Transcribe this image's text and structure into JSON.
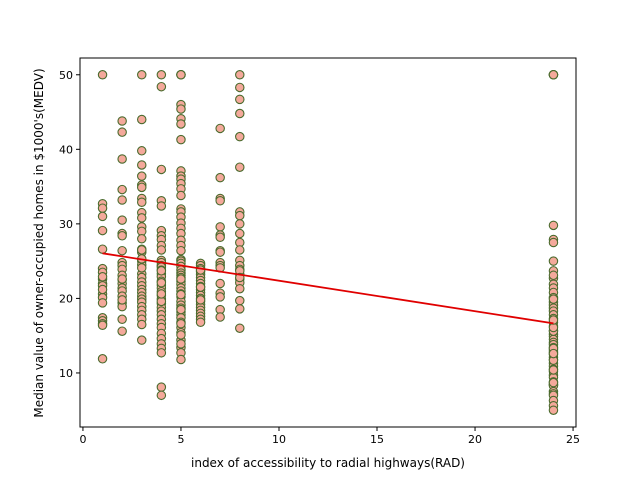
{
  "chart_data": {
    "type": "scatter",
    "title": "",
    "xlabel": "index of accessibility to radial highways(RAD)",
    "ylabel": "Median value of owner-occupied homes in $1000's(MEDV)",
    "xlim": [
      -0.15,
      25.15
    ],
    "ylim": [
      2.75,
      52.25
    ],
    "x_ticks": [
      0,
      5,
      10,
      15,
      20,
      25
    ],
    "y_ticks": [
      10,
      20,
      30,
      40,
      50
    ],
    "grid": false,
    "legend": "none",
    "marker_fill": "#f4a99b",
    "marker_edge": "#4b6b2e",
    "line_color": "#e00000",
    "series": [
      {
        "x": [
          1,
          1,
          1,
          1,
          1,
          1,
          1,
          1,
          1,
          1,
          1,
          1,
          1,
          1,
          1,
          1,
          1,
          1,
          1,
          1,
          1,
          2,
          2,
          2,
          2,
          2,
          2,
          2,
          2,
          2,
          2,
          2,
          2,
          2,
          2,
          2,
          2,
          2,
          2,
          2,
          2,
          2,
          2,
          2,
          2,
          3,
          3,
          3,
          3,
          3,
          3,
          3,
          3,
          3,
          3,
          3,
          3,
          3,
          3,
          3,
          3,
          3,
          3,
          3,
          3,
          3,
          3,
          3,
          3,
          3,
          3,
          3,
          3,
          3,
          3,
          3,
          3,
          3,
          3,
          3,
          3,
          4,
          4,
          4,
          4,
          4,
          4,
          4,
          4,
          4,
          4,
          4,
          4,
          4,
          4,
          4,
          4,
          4,
          4,
          4,
          4,
          4,
          4,
          4,
          4,
          4,
          4,
          4,
          4,
          4,
          4,
          4,
          4,
          4,
          4,
          4,
          4,
          4,
          4,
          4,
          4,
          4,
          5,
          5,
          5,
          5,
          5,
          5,
          5,
          5,
          5,
          5,
          5,
          5,
          5,
          5,
          5,
          5,
          5,
          5,
          5,
          5,
          5,
          5,
          5,
          5,
          5,
          5,
          5,
          5,
          5,
          5,
          5,
          5,
          5,
          5,
          5,
          5,
          5,
          5,
          5,
          5,
          5,
          5,
          5,
          5,
          5,
          5,
          5,
          5,
          5,
          5,
          5,
          5,
          5,
          5,
          5,
          5,
          6,
          6,
          6,
          6,
          6,
          6,
          6,
          6,
          6,
          6,
          6,
          6,
          6,
          6,
          6,
          6,
          6,
          6,
          6,
          6,
          6,
          6,
          6,
          6,
          7,
          7,
          7,
          7,
          7,
          7,
          7,
          7,
          7,
          7,
          7,
          7,
          7,
          7,
          7,
          7,
          7,
          8,
          8,
          8,
          8,
          8,
          8,
          8,
          8,
          8,
          8,
          8,
          8,
          8,
          8,
          8,
          8,
          8,
          8,
          8,
          8,
          8,
          8,
          8,
          8,
          24,
          24,
          24,
          24,
          24,
          24,
          24,
          24,
          24,
          24,
          24,
          24,
          24,
          24,
          24,
          24,
          24,
          24,
          24,
          24,
          24,
          24,
          24,
          24,
          24,
          24,
          24,
          24,
          24,
          24,
          24,
          24,
          24,
          24,
          24,
          24,
          24,
          24,
          24,
          24,
          24,
          24,
          24,
          24,
          24,
          24,
          24,
          24,
          24,
          24,
          24,
          24,
          24,
          24,
          24,
          24,
          24,
          24,
          24,
          24
        ],
        "y": [
          50,
          32.7,
          32.1,
          31,
          29.1,
          26.6,
          24,
          23.5,
          22.6,
          22,
          21.7,
          20.6,
          20.1,
          19.4,
          17.4,
          17,
          16.6,
          16.4,
          11.9,
          22.9,
          21.2,
          43.8,
          42.3,
          38.7,
          34.6,
          33.2,
          30.5,
          28.7,
          28.4,
          26.4,
          24.8,
          24.4,
          23.9,
          23.1,
          22.5,
          22,
          21.4,
          21,
          20.3,
          19.4,
          18.9,
          17.2,
          15.6,
          19.8,
          22.6,
          50,
          44,
          39.8,
          37.9,
          36.4,
          35.2,
          34.9,
          33.4,
          32.9,
          31.5,
          30.8,
          29.6,
          29,
          28,
          26.6,
          26.2,
          25,
          24.5,
          23.3,
          22.8,
          22.2,
          21.7,
          21.2,
          20.8,
          20.3,
          19.9,
          19.5,
          18.9,
          18.4,
          17.8,
          17.2,
          16.5,
          14.4,
          24.1,
          25.3,
          26.5,
          50,
          48.4,
          37.3,
          33.1,
          32.4,
          29.1,
          28.4,
          27.9,
          27.1,
          26.5,
          25.1,
          24.8,
          24.4,
          24.2,
          23.8,
          23.3,
          22.9,
          22.3,
          21.8,
          21.4,
          20.9,
          20.4,
          19.9,
          19.3,
          18.8,
          18.3,
          17.8,
          17.2,
          16.6,
          16.1,
          15.3,
          14.6,
          13.9,
          13.3,
          12.7,
          8.1,
          7,
          19.6,
          20.6,
          23.7,
          22.1,
          50,
          50,
          50,
          46,
          45.4,
          44.1,
          43.4,
          41.3,
          37.1,
          36.4,
          36,
          35.4,
          34.7,
          33.8,
          32,
          31.6,
          30.9,
          30.1,
          29.4,
          28.7,
          27.8,
          27.1,
          26.4,
          25.2,
          25,
          24.7,
          24.3,
          23.8,
          23.4,
          23.1,
          22.8,
          22.3,
          21.9,
          21.4,
          21,
          20.6,
          20.2,
          19.6,
          19.1,
          18.7,
          18.2,
          17.8,
          17.4,
          16.8,
          16.1,
          15.4,
          14.4,
          13.4,
          12.7,
          11.8,
          13.9,
          15.1,
          16.6,
          18.5,
          20.5,
          22.6,
          24.7,
          24.4,
          24,
          23.6,
          23.2,
          22.8,
          22.4,
          22,
          21.6,
          21.2,
          20.8,
          20.4,
          20,
          19.6,
          19.2,
          18.8,
          18.4,
          18,
          17.6,
          17.2,
          16.8,
          21.5,
          23.8,
          19.8,
          42.8,
          36.2,
          33.4,
          33.1,
          29.6,
          28.5,
          28.2,
          26.4,
          26.2,
          24.8,
          24.4,
          22,
          20.7,
          18.5,
          17.5,
          24.1,
          20.2,
          50,
          48.3,
          46.7,
          44.8,
          41.7,
          37.6,
          31.6,
          31.1,
          30,
          28.7,
          27.5,
          26.5,
          25.1,
          24.4,
          23.9,
          23.2,
          22.6,
          22.1,
          21.3,
          19.7,
          18.6,
          16,
          23.7,
          22.8,
          50,
          50,
          50,
          50,
          29.8,
          27.9,
          27.5,
          25,
          23.7,
          22.7,
          21.9,
          21.4,
          20.8,
          20.1,
          19.5,
          19.1,
          18.7,
          18.3,
          17.8,
          17.3,
          16.8,
          16.3,
          15.7,
          15.2,
          14.9,
          14.5,
          14.1,
          13.8,
          13.4,
          13.1,
          12.8,
          12.5,
          12.1,
          11.8,
          11.3,
          10.9,
          10.5,
          10.2,
          9.7,
          9.4,
          8.8,
          8.5,
          8.4,
          8.3,
          7.5,
          7.2,
          7,
          6.3,
          5.6,
          5,
          23.1,
          19.9,
          15.6,
          13.3,
          11.7,
          10.4,
          8.7,
          16.1,
          17.1,
          12.6
        ]
      }
    ],
    "fit_line": {
      "x": [
        1,
        24
      ],
      "y": [
        26.05,
        16.65
      ]
    }
  }
}
